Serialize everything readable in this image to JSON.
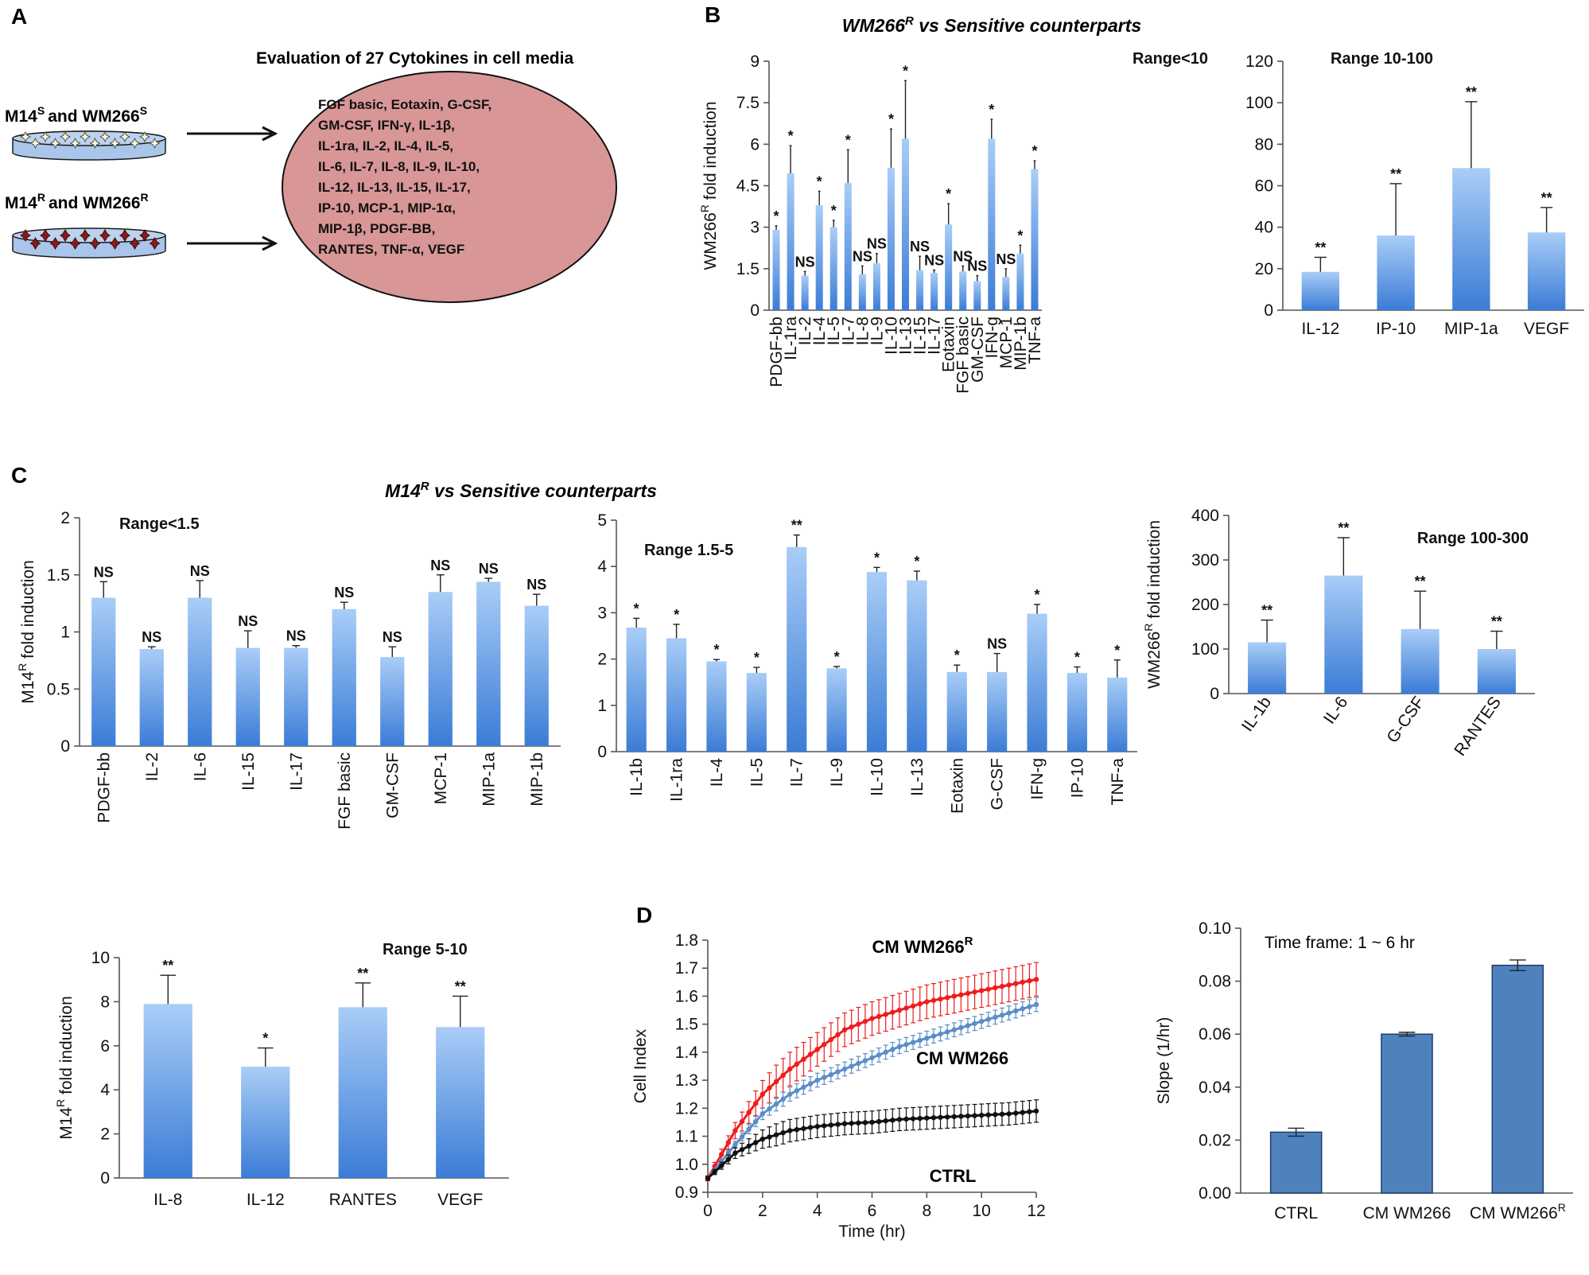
{
  "panel_labels": {
    "a": "A",
    "b": "B",
    "c": "C",
    "d": "D"
  },
  "panel_a": {
    "title": "Evaluation of 27 Cytokines in cell media",
    "sensitive_label": "M14",
    "sensitive_sup": "S",
    "sensitive_and": "and WM266",
    "sensitive_sup2": "S",
    "resistant_label": "M14",
    "resistant_sup": "R",
    "resistant_and": "and WM266",
    "resistant_sup2": "R",
    "cytokine_lines": [
      "FGF basic, Eotaxin, G-CSF,",
      "GM-CSF, IFN-γ, IL-1β,",
      "IL-1ra, IL-2, IL-4, IL-5,",
      "IL-6, IL-7, IL-8, IL-9, IL-10,",
      "IL-12, IL-13, IL-15, IL-17,",
      "IP-10, MCP-1, MIP-1α,",
      "MIP-1β, PDGF-BB,",
      "RANTES, TNF-α, VEGF"
    ],
    "colors": {
      "dish": "#a9c6ea",
      "ellipse": "#d89696"
    }
  },
  "panel_b_title": {
    "main": "WM266",
    "sup": "R",
    "rest": " vs Sensitive counterparts"
  },
  "panel_c_title": {
    "main": "M14",
    "sup": "R",
    "rest": " vs Sensitive counterparts"
  },
  "chart_data": [
    {
      "id": "b1",
      "type": "bar",
      "range_label": "Range<10",
      "ylabel_main": "WM266",
      "ylabel_sup": "R",
      "ylabel_rest": " fold induction",
      "ylim": [
        0,
        9
      ],
      "yticks": [
        "0",
        "1.5",
        "3",
        "4.5",
        "6",
        "7.5",
        "9"
      ],
      "categories": [
        "PDGF-bb",
        "IL-1ra",
        "IL-2",
        "IL-4",
        "IL-5",
        "IL-7",
        "IL-8",
        "IL-9",
        "IL-10",
        "IL-13",
        "IL-15",
        "IL-17",
        "Eotaxin",
        "FGF basic",
        "GM-CSF",
        "IFN-g",
        "MCP-1",
        "MIP-1b",
        "TNF-a"
      ],
      "values": [
        2.9,
        4.95,
        1.25,
        3.8,
        3.0,
        4.6,
        1.3,
        1.7,
        5.15,
        6.2,
        1.45,
        1.35,
        3.1,
        1.4,
        1.05,
        6.2,
        1.2,
        2.05,
        5.1
      ],
      "errors": [
        0.15,
        1.0,
        0.15,
        0.5,
        0.25,
        1.2,
        0.3,
        0.35,
        1.4,
        2.1,
        0.5,
        0.1,
        0.75,
        0.2,
        0.2,
        0.7,
        0.3,
        0.3,
        0.3
      ],
      "significance": [
        "*",
        "*",
        "NS",
        "*",
        "*",
        "*",
        "NS",
        "NS",
        "*",
        "*",
        "NS",
        "NS",
        "*",
        "NS",
        "NS",
        "*",
        "NS",
        "*",
        "*"
      ]
    },
    {
      "id": "b2",
      "type": "bar",
      "range_label": "Range 10-100",
      "ylim": [
        0,
        120
      ],
      "yticks": [
        "0",
        "20",
        "40",
        "60",
        "80",
        "100",
        "120"
      ],
      "categories": [
        "IL-12",
        "IP-10",
        "MIP-1a",
        "VEGF"
      ],
      "values": [
        18.5,
        36,
        68.5,
        37.5
      ],
      "errors": [
        7,
        25,
        32,
        12
      ],
      "significance": [
        "**",
        "**",
        "**",
        "**"
      ]
    },
    {
      "id": "c1",
      "type": "bar",
      "range_label": "Range<1.5",
      "ylabel_main": "M14",
      "ylabel_sup": "R",
      "ylabel_rest": " fold induction",
      "ylim": [
        0,
        2
      ],
      "yticks": [
        "0",
        "0.5",
        "1",
        "1.5",
        "2"
      ],
      "categories": [
        "PDGF-bb",
        "IL-2",
        "IL-6",
        "IL-15",
        "IL-17",
        "FGF basic",
        "GM-CSF",
        "MCP-1",
        "MIP-1a",
        "MIP-1b"
      ],
      "values": [
        1.3,
        0.85,
        1.3,
        0.86,
        0.86,
        1.2,
        0.78,
        1.35,
        1.44,
        1.23
      ],
      "errors": [
        0.14,
        0.02,
        0.15,
        0.15,
        0.02,
        0.06,
        0.09,
        0.15,
        0.03,
        0.1
      ],
      "significance": [
        "NS",
        "NS",
        "NS",
        "NS",
        "NS",
        "NS",
        "NS",
        "NS",
        "NS",
        "NS"
      ]
    },
    {
      "id": "c2",
      "type": "bar",
      "range_label": "Range 1.5-5",
      "ylim": [
        0,
        5
      ],
      "yticks": [
        "0",
        "1",
        "2",
        "3",
        "4",
        "5"
      ],
      "categories": [
        "IL-1b",
        "IL-1ra",
        "IL-4",
        "IL-5",
        "IL-7",
        "IL-9",
        "IL-10",
        "IL-13",
        "Eotaxin",
        "G-CSF",
        "IFN-g",
        "IP-10",
        "TNF-a"
      ],
      "values": [
        2.68,
        2.45,
        1.95,
        1.7,
        4.42,
        1.8,
        3.88,
        3.7,
        1.72,
        1.72,
        2.98,
        1.7,
        1.6
      ],
      "errors": [
        0.2,
        0.3,
        0.04,
        0.12,
        0.26,
        0.04,
        0.1,
        0.2,
        0.15,
        0.4,
        0.2,
        0.13,
        0.38
      ],
      "significance": [
        "*",
        "*",
        "*",
        "*",
        "**",
        "*",
        "*",
        "*",
        "*",
        "NS",
        "*",
        "*",
        "*"
      ]
    },
    {
      "id": "c3",
      "type": "bar",
      "range_label": "Range 100-300",
      "ylabel_main": "WM266",
      "ylabel_sup": "R",
      "ylabel_rest": " fold induction",
      "ylim": [
        0,
        400
      ],
      "yticks": [
        "0",
        "100",
        "200",
        "300",
        "400"
      ],
      "categories": [
        "IL-1b",
        "IL-6",
        "G-CSF",
        "RANTES"
      ],
      "values": [
        115,
        265,
        145,
        100
      ],
      "errors": [
        50,
        85,
        85,
        40
      ],
      "significance": [
        "**",
        "**",
        "**",
        "**"
      ]
    },
    {
      "id": "c4",
      "type": "bar",
      "range_label": "Range 5-10",
      "ylabel_main": "M14",
      "ylabel_sup": "R",
      "ylabel_rest": " fold induction",
      "ylim": [
        0,
        10
      ],
      "yticks": [
        "0",
        "2",
        "4",
        "6",
        "8",
        "10"
      ],
      "categories": [
        "IL-8",
        "IL-12",
        "RANTES",
        "VEGF"
      ],
      "values": [
        7.9,
        5.05,
        7.75,
        6.85
      ],
      "errors": [
        1.3,
        0.85,
        1.1,
        1.4
      ],
      "significance": [
        "**",
        "*",
        "**",
        "**"
      ]
    },
    {
      "id": "d1",
      "type": "line",
      "xlabel": "Time (hr)",
      "ylabel": "Cell Index",
      "xlim": [
        0,
        12
      ],
      "ylim": [
        0.9,
        1.8
      ],
      "xticks": [
        "0",
        "2",
        "4",
        "6",
        "8",
        "10",
        "12"
      ],
      "yticks": [
        "0.9",
        "1.0",
        "1.1",
        "1.2",
        "1.3",
        "1.4",
        "1.5",
        "1.6",
        "1.7",
        "1.8"
      ],
      "series": [
        {
          "name": "CM WM266",
          "sup": "R",
          "color": "#ee1c1c",
          "x": [
            0,
            1,
            2,
            3,
            4,
            5,
            6,
            7,
            8,
            9,
            10,
            11,
            12
          ],
          "y": [
            0.95,
            1.12,
            1.25,
            1.34,
            1.41,
            1.48,
            1.52,
            1.55,
            1.58,
            1.6,
            1.62,
            1.64,
            1.66
          ],
          "err": 0.06
        },
        {
          "name": "CM WM266",
          "sup": "",
          "color": "#5b8ec8",
          "x": [
            0,
            1,
            2,
            3,
            4,
            5,
            6,
            7,
            8,
            9,
            10,
            11,
            12
          ],
          "y": [
            0.95,
            1.07,
            1.18,
            1.25,
            1.3,
            1.34,
            1.38,
            1.42,
            1.45,
            1.48,
            1.51,
            1.54,
            1.57
          ],
          "err": 0.025
        },
        {
          "name": "CTRL",
          "sup": "",
          "color": "#111111",
          "x": [
            0,
            1,
            2,
            3,
            4,
            5,
            6,
            7,
            8,
            9,
            10,
            11,
            12
          ],
          "y": [
            0.95,
            1.04,
            1.09,
            1.12,
            1.135,
            1.145,
            1.15,
            1.16,
            1.165,
            1.17,
            1.175,
            1.18,
            1.19
          ],
          "err": 0.04
        }
      ]
    },
    {
      "id": "d2",
      "type": "bar",
      "annotation": "Time frame: 1 ~ 6 hr",
      "ylabel": "Slope (1/hr)",
      "ylim": [
        0,
        0.1
      ],
      "yticks": [
        "0.00",
        "0.02",
        "0.04",
        "0.06",
        "0.08",
        "0.10"
      ],
      "categories": [
        "CTRL",
        "CM WM266",
        "CM WM266"
      ],
      "category_sups": [
        "",
        "",
        "R"
      ],
      "values": [
        0.023,
        0.06,
        0.086
      ],
      "errors": [
        0.0015,
        0.0007,
        0.002
      ],
      "color": "#4f81bd"
    }
  ]
}
